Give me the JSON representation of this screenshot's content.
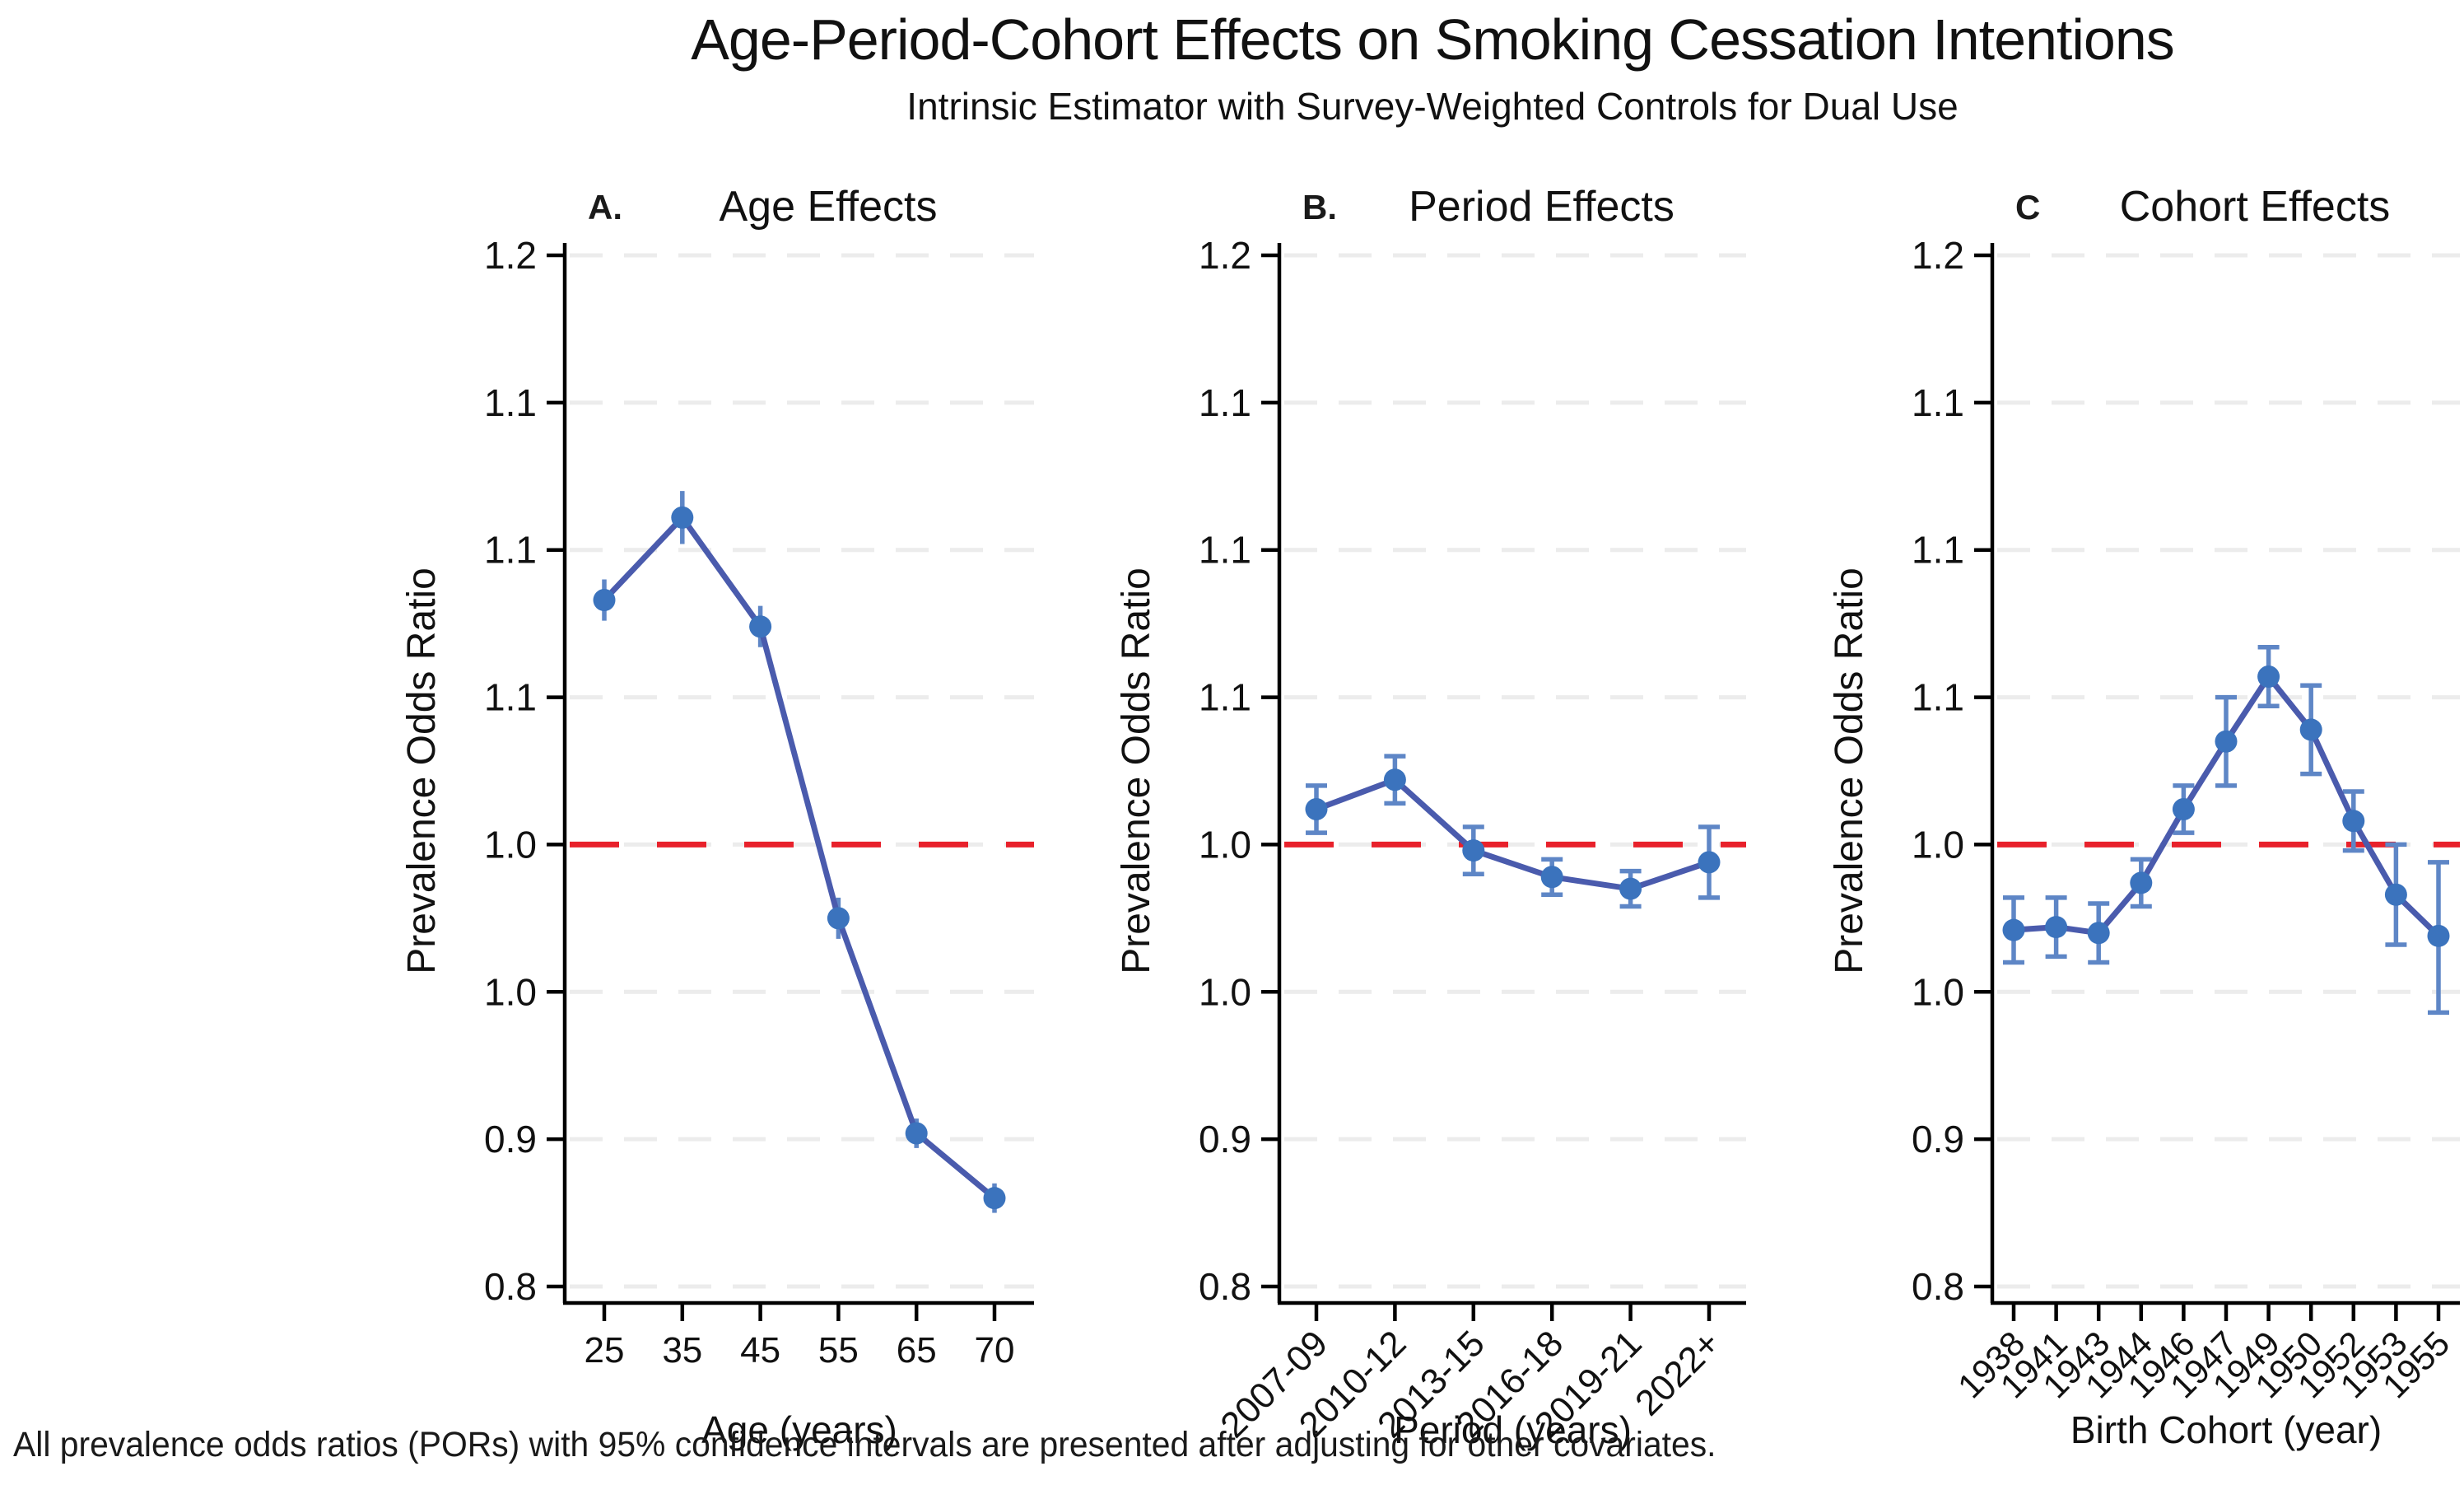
{
  "title": "Age-Period-Cohort Effects on Smoking Cessation Intentions",
  "subtitle": "Intrinsic Estimator with Survey-Weighted Controls for Dual Use",
  "caption": "All prevalence odds ratios (PORs) with 95% confidence intervals are presented after adjusting for other covariates.",
  "colors": {
    "line": "#4A5BAD",
    "marker": "#3B73BD",
    "errorbar": "#5E86C6",
    "reference_line": "#E8212B",
    "grid": "#ECECEC",
    "axis": "#000000",
    "text": "#111111"
  },
  "y_axis": {
    "label": "Prevalence Odds Ratio",
    "tick_labels": [
      "1.2",
      "1.1",
      "1.1",
      "1.1",
      "1.0",
      "1.0",
      "0.9",
      "0.8"
    ],
    "reference_tick_index": 4,
    "reference_value": 1.0,
    "value_per_tick_step": 0.05,
    "grid": "on"
  },
  "reference_line_label": "POR = 1.0 (dashed red reference)",
  "chart_data": [
    {
      "type": "line",
      "panel_label": "A.",
      "title": "Age Effects",
      "xlabel": "Age (years)",
      "ylabel": "Prevalence Odds Ratio",
      "categories": [
        "25",
        "35",
        "45",
        "55",
        "65",
        "70"
      ],
      "values": [
        1.083,
        1.111,
        1.074,
        0.975,
        0.902,
        0.88
      ],
      "ci_low": [
        1.076,
        1.102,
        1.067,
        0.968,
        0.897,
        0.875
      ],
      "ci_high": [
        1.09,
        1.12,
        1.081,
        0.982,
        0.907,
        0.885
      ],
      "x_tick_rotation": 0,
      "error_caps": false,
      "legend": "none"
    },
    {
      "type": "line",
      "panel_label": "B.",
      "title": "Period Effects",
      "xlabel": "Period (years)",
      "ylabel": "Prevalence Odds Ratio",
      "categories": [
        "2007-09",
        "2010-12",
        "2013-15",
        "2016-18",
        "2019-21",
        "2022+"
      ],
      "values": [
        1.012,
        1.022,
        0.998,
        0.989,
        0.985,
        0.994
      ],
      "ci_low": [
        1.004,
        1.014,
        0.99,
        0.983,
        0.979,
        0.982
      ],
      "ci_high": [
        1.02,
        1.03,
        1.006,
        0.995,
        0.991,
        1.006
      ],
      "x_tick_rotation": -45,
      "error_caps": true,
      "legend": "none"
    },
    {
      "type": "line",
      "panel_label": "C",
      "title": "Cohort Effects",
      "xlabel": "Birth Cohort (year)",
      "ylabel": "Prevalence Odds Ratio",
      "categories": [
        "1938",
        "1941",
        "1943",
        "1944",
        "1946",
        "1947",
        "1949",
        "1950",
        "1952",
        "1953",
        "1955"
      ],
      "values": [
        0.971,
        0.972,
        0.97,
        0.987,
        1.012,
        1.035,
        1.057,
        1.039,
        1.008,
        0.983,
        0.969
      ],
      "ci_low": [
        0.96,
        0.962,
        0.96,
        0.979,
        1.004,
        1.02,
        1.047,
        1.024,
        0.998,
        0.966,
        0.943
      ],
      "ci_high": [
        0.982,
        0.982,
        0.98,
        0.995,
        1.02,
        1.05,
        1.067,
        1.054,
        1.018,
        1.0,
        0.994
      ],
      "x_tick_rotation": -45,
      "error_caps": true,
      "legend": "none"
    }
  ]
}
